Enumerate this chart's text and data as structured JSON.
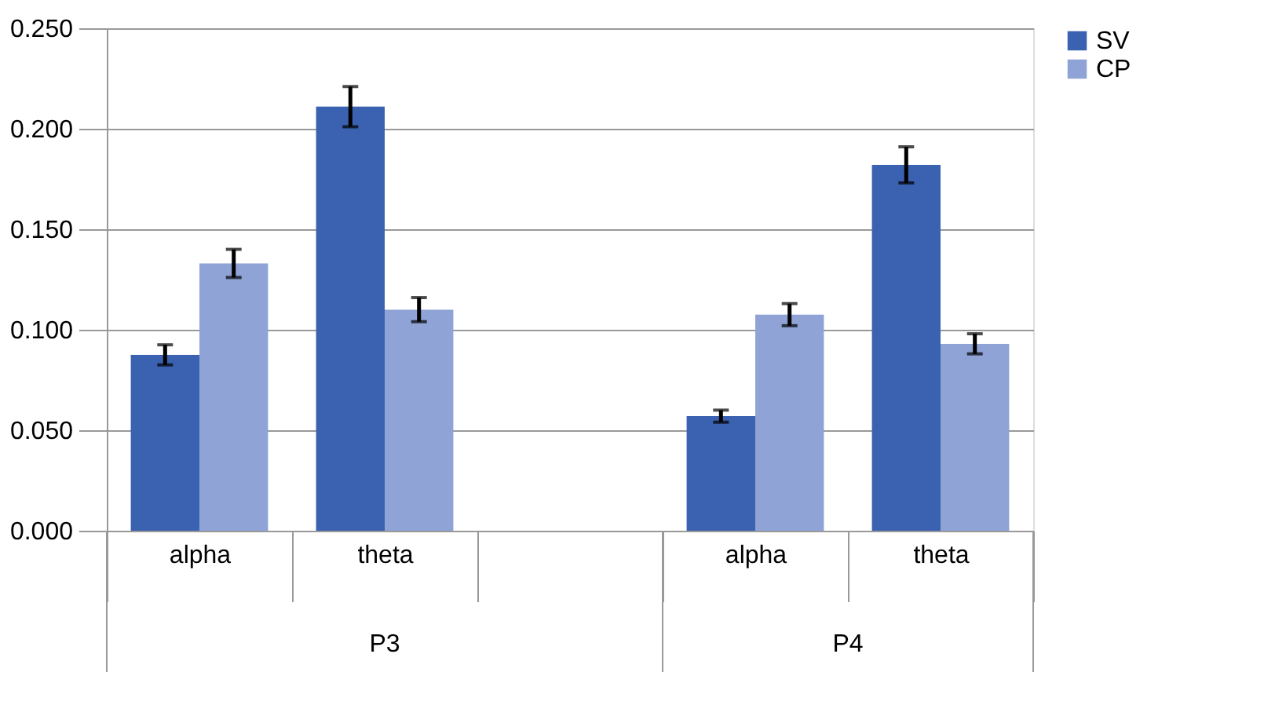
{
  "chart_data": {
    "type": "bar",
    "categories": [
      "alpha",
      "theta",
      null,
      "alpha",
      "theta"
    ],
    "series": [
      {
        "name": "SV",
        "color": "#3a62b0",
        "values": [
          0.0875,
          0.211,
          null,
          0.057,
          0.182
        ],
        "errors": [
          0.005,
          0.01,
          null,
          0.003,
          0.009
        ]
      },
      {
        "name": "CP",
        "color": "#8fa3d6",
        "values": [
          0.133,
          0.11,
          null,
          0.1075,
          0.093
        ],
        "errors": [
          0.007,
          0.006,
          null,
          0.0055,
          0.005
        ]
      }
    ],
    "annotations": [
      "P3",
      "P4"
    ],
    "ylim": [
      0,
      0.25
    ],
    "yticks": [
      {
        "value": 0,
        "label": "0.000"
      },
      {
        "value": 0.05,
        "label": "0.050"
      },
      {
        "value": 0.1,
        "label": "0.100"
      },
      {
        "value": 0.15,
        "label": "0.150"
      },
      {
        "value": 0.2,
        "label": "0.200"
      },
      {
        "value": 0.25,
        "label": "0.250"
      }
    ],
    "grid": "y",
    "legend": "right"
  }
}
